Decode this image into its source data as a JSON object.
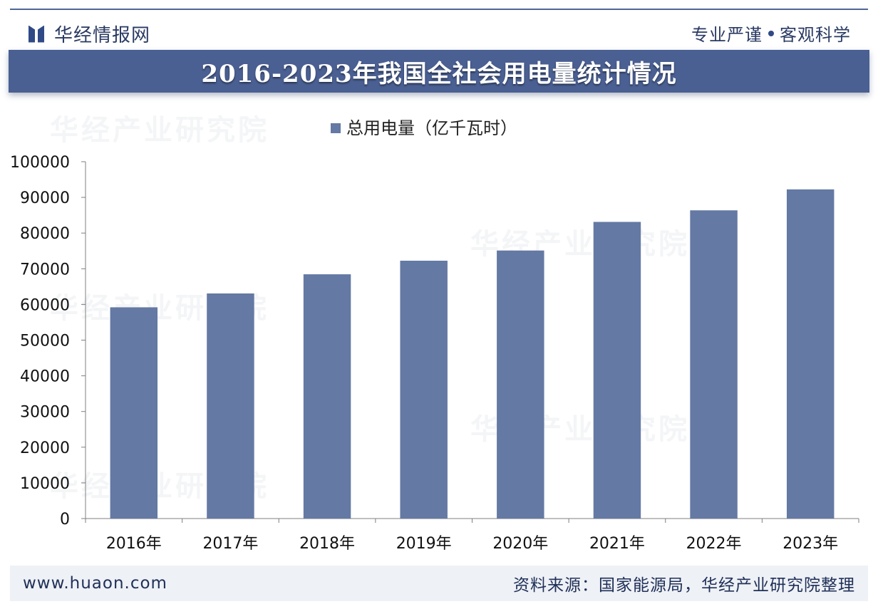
{
  "header": {
    "logo_text": "华经情报网",
    "slogan_left": "专业严谨",
    "slogan_right": "客观科学"
  },
  "watermark_text": "华经产业研究院",
  "chart_data": {
    "type": "bar",
    "title": "2016-2023年我国全社会用电量统计情况",
    "categories": [
      "2016年",
      "2017年",
      "2018年",
      "2019年",
      "2020年",
      "2021年",
      "2022年",
      "2023年"
    ],
    "series": [
      {
        "name": "总用电量（亿千瓦时）",
        "values": [
          59198,
          63077,
          68449,
          72255,
          75110,
          83128,
          86372,
          92241
        ],
        "color": "#6479a3"
      }
    ],
    "ylim": [
      0,
      100000
    ],
    "yticks": [
      "0",
      "10000",
      "20000",
      "30000",
      "40000",
      "50000",
      "60000",
      "70000",
      "80000",
      "90000",
      "100000"
    ],
    "grid": false,
    "legend_position": "top-center"
  },
  "footer": {
    "site": "www.huaon.com",
    "source": "资料来源：国家能源局，华经产业研究院整理"
  }
}
